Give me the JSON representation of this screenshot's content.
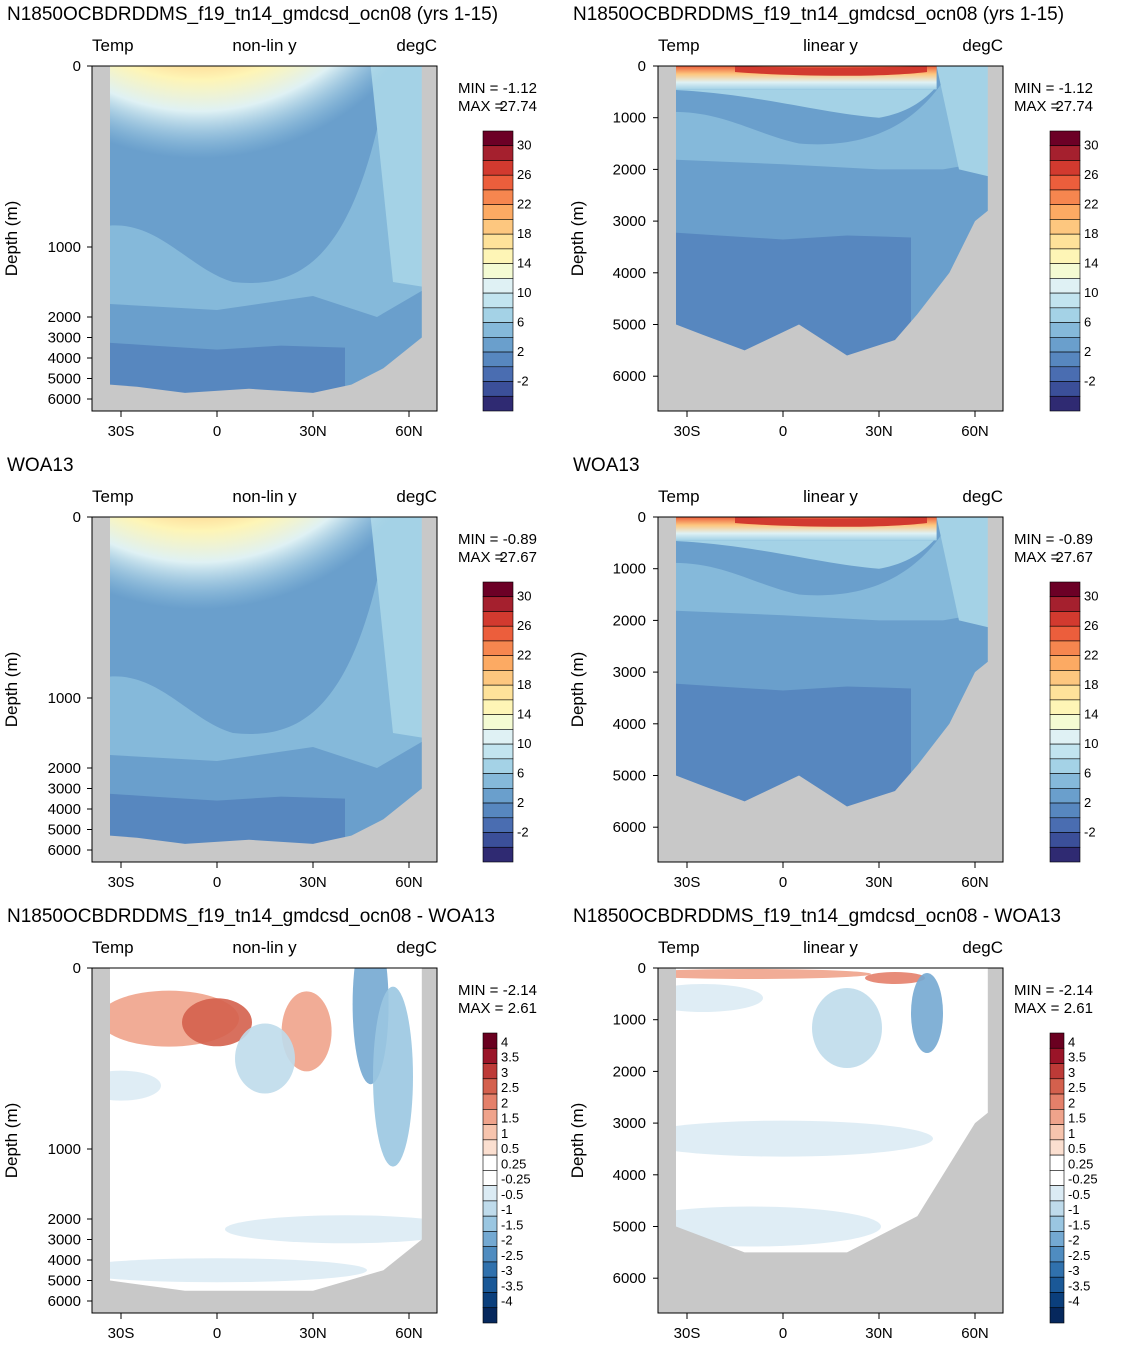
{
  "chart_data": [
    {
      "type": "contour",
      "panel": "model-nonlinear",
      "title": "N1850OCBDRDDMS_f19_tn14_gmdcsd_ocn08 (yrs 1-15)",
      "left_label": "Temp",
      "center_label": "non-lin y",
      "right_label": "degC",
      "ylabel": "Depth (m)",
      "yticks": [
        0,
        1000,
        2000,
        3000,
        4000,
        5000,
        6000
      ],
      "xticks": [
        "30S",
        "0",
        "30N",
        "60N"
      ],
      "min_label": "MIN =",
      "min_value": "-1.12",
      "max_label": "MAX =",
      "max_value": "27.74",
      "colorbar_labels": [
        "30",
        "26",
        "22",
        "18",
        "14",
        "10",
        "6",
        "2",
        "-2"
      ]
    },
    {
      "type": "contour",
      "panel": "model-linear",
      "title": "N1850OCBDRDDMS_f19_tn14_gmdcsd_ocn08 (yrs 1-15)",
      "left_label": "Temp",
      "center_label": "linear y",
      "right_label": "degC",
      "ylabel": "Depth (m)",
      "yticks": [
        0,
        1000,
        2000,
        3000,
        4000,
        5000,
        6000
      ],
      "xticks": [
        "30S",
        "0",
        "30N",
        "60N"
      ],
      "min_label": "MIN =",
      "min_value": "-1.12",
      "max_label": "MAX =",
      "max_value": "27.74",
      "colorbar_labels": [
        "30",
        "26",
        "22",
        "18",
        "14",
        "10",
        "6",
        "2",
        "-2"
      ]
    },
    {
      "type": "contour",
      "panel": "obs-nonlinear",
      "title": "WOA13",
      "left_label": "Temp",
      "center_label": "non-lin y",
      "right_label": "degC",
      "ylabel": "Depth (m)",
      "yticks": [
        0,
        1000,
        2000,
        3000,
        4000,
        5000,
        6000
      ],
      "xticks": [
        "30S",
        "0",
        "30N",
        "60N"
      ],
      "min_label": "MIN =",
      "min_value": "-0.89",
      "max_label": "MAX =",
      "max_value": "27.67",
      "colorbar_labels": [
        "30",
        "26",
        "22",
        "18",
        "14",
        "10",
        "6",
        "2",
        "-2"
      ]
    },
    {
      "type": "contour",
      "panel": "obs-linear",
      "title": "WOA13",
      "left_label": "Temp",
      "center_label": "linear y",
      "right_label": "degC",
      "ylabel": "Depth (m)",
      "yticks": [
        0,
        1000,
        2000,
        3000,
        4000,
        5000,
        6000
      ],
      "xticks": [
        "30S",
        "0",
        "30N",
        "60N"
      ],
      "min_label": "MIN =",
      "min_value": "-0.89",
      "max_label": "MAX =",
      "max_value": "27.67",
      "colorbar_labels": [
        "30",
        "26",
        "22",
        "18",
        "14",
        "10",
        "6",
        "2",
        "-2"
      ]
    },
    {
      "type": "contour",
      "panel": "diff-nonlinear",
      "title": "N1850OCBDRDDMS_f19_tn14_gmdcsd_ocn08 - WOA13",
      "left_label": "Temp",
      "center_label": "non-lin y",
      "right_label": "degC",
      "ylabel": "Depth (m)",
      "yticks": [
        0,
        1000,
        2000,
        3000,
        4000,
        5000,
        6000
      ],
      "xticks": [
        "30S",
        "0",
        "30N",
        "60N"
      ],
      "min_label": "MIN =",
      "min_value": "-2.14",
      "max_label": "MAX =",
      "max_value": "2.61",
      "colorbar_labels": [
        "4",
        "3.5",
        "3",
        "2.5",
        "2",
        "1.5",
        "1",
        "0.5",
        "0.25",
        "-0.25",
        "-0.5",
        "-1",
        "-1.5",
        "-2",
        "-2.5",
        "-3",
        "-3.5",
        "-4"
      ]
    },
    {
      "type": "contour",
      "panel": "diff-linear",
      "title": "N1850OCBDRDDMS_f19_tn14_gmdcsd_ocn08 - WOA13",
      "left_label": "Temp",
      "center_label": "linear y",
      "right_label": "degC",
      "ylabel": "Depth (m)",
      "yticks": [
        0,
        1000,
        2000,
        3000,
        4000,
        5000,
        6000
      ],
      "xticks": [
        "30S",
        "0",
        "30N",
        "60N"
      ],
      "min_label": "MIN =",
      "min_value": "-2.14",
      "max_label": "MAX =",
      "max_value": "2.61",
      "colorbar_labels": [
        "4",
        "3.5",
        "3",
        "2.5",
        "2",
        "1.5",
        "1",
        "0.5",
        "0.25",
        "-0.25",
        "-0.5",
        "-1",
        "-1.5",
        "-2",
        "-2.5",
        "-3",
        "-3.5",
        "-4"
      ]
    }
  ],
  "colors": {
    "land": "#c8c8c8",
    "temp_scale": [
      "#6c0026",
      "#a5202e",
      "#d23a2f",
      "#ec5e3c",
      "#f6864f",
      "#fcaa63",
      "#fdc77f",
      "#fee29a",
      "#fef5b6",
      "#f4fbd3",
      "#dff1f4",
      "#c2e4ef",
      "#a4d2e6",
      "#85b9da",
      "#6a9fcc",
      "#5787bf",
      "#4a6db1",
      "#3b4f99",
      "#2f2a72"
    ],
    "diff_scale": [
      "#6a0020",
      "#9a1428",
      "#bd3a37",
      "#d4604d",
      "#e4806a",
      "#efa38b",
      "#f7c4ad",
      "#fbdfd0",
      "#ffffff",
      "#ffffff",
      "#dbebf4",
      "#bfdbeb",
      "#9ac6e1",
      "#74a9d2",
      "#4f8cc0",
      "#3071ad",
      "#1a5897",
      "#0b3f7c",
      "#06285d"
    ]
  }
}
